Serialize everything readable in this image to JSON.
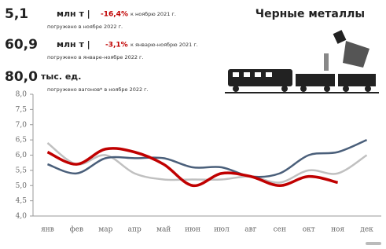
{
  "header": {
    "title": "Черные металлы",
    "stats": [
      {
        "value": "5,1",
        "unit": "млн т |",
        "change": "-16,4%",
        "compare": "к ноябрю 2021 г.",
        "note": "погружено в ноябре 2022 г."
      },
      {
        "value": "60,9",
        "unit": "млн т |",
        "change": "-3,1%",
        "compare": "к январю-ноябрю 2021 г.",
        "note": "погружено в январе-ноябре 2022 г."
      },
      {
        "value": "80,0",
        "unit": "тыс. ед.",
        "note": "погружено вагонов* в ноябре 2022 г."
      }
    ]
  },
  "chart_data": {
    "type": "line",
    "categories": [
      "янв",
      "фев",
      "мар",
      "апр",
      "май",
      "июн",
      "июл",
      "авг",
      "сен",
      "окт",
      "ноя",
      "дек"
    ],
    "series": [
      {
        "color": "#c0c0c0",
        "values": [
          6.4,
          5.7,
          6.0,
          5.4,
          5.2,
          5.2,
          5.2,
          5.3,
          5.1,
          5.5,
          5.4,
          6.0
        ]
      },
      {
        "color": "#4a5f7a",
        "values": [
          5.7,
          5.4,
          5.9,
          5.9,
          5.9,
          5.6,
          5.6,
          5.3,
          5.4,
          6.0,
          6.1,
          6.5
        ]
      },
      {
        "color": "#c00000",
        "values": [
          6.1,
          5.7,
          6.2,
          6.1,
          5.7,
          5.0,
          5.4,
          5.3,
          5.0,
          5.3,
          5.1,
          null
        ]
      }
    ],
    "ylim": [
      4.0,
      8.0
    ],
    "yticks": [
      {
        "value": 4.0,
        "label": "4,0"
      },
      {
        "value": 4.5,
        "label": "4,5"
      },
      {
        "value": 5.0,
        "label": "5,0"
      },
      {
        "value": 5.5,
        "label": "5,5"
      },
      {
        "value": 6.0,
        "label": "6,0"
      },
      {
        "value": 6.5,
        "label": "6,5"
      },
      {
        "value": 7.0,
        "label": "7,0"
      },
      {
        "value": 7.5,
        "label": "7,5"
      },
      {
        "value": 8.0,
        "label": "8,0"
      }
    ],
    "grid": false
  }
}
